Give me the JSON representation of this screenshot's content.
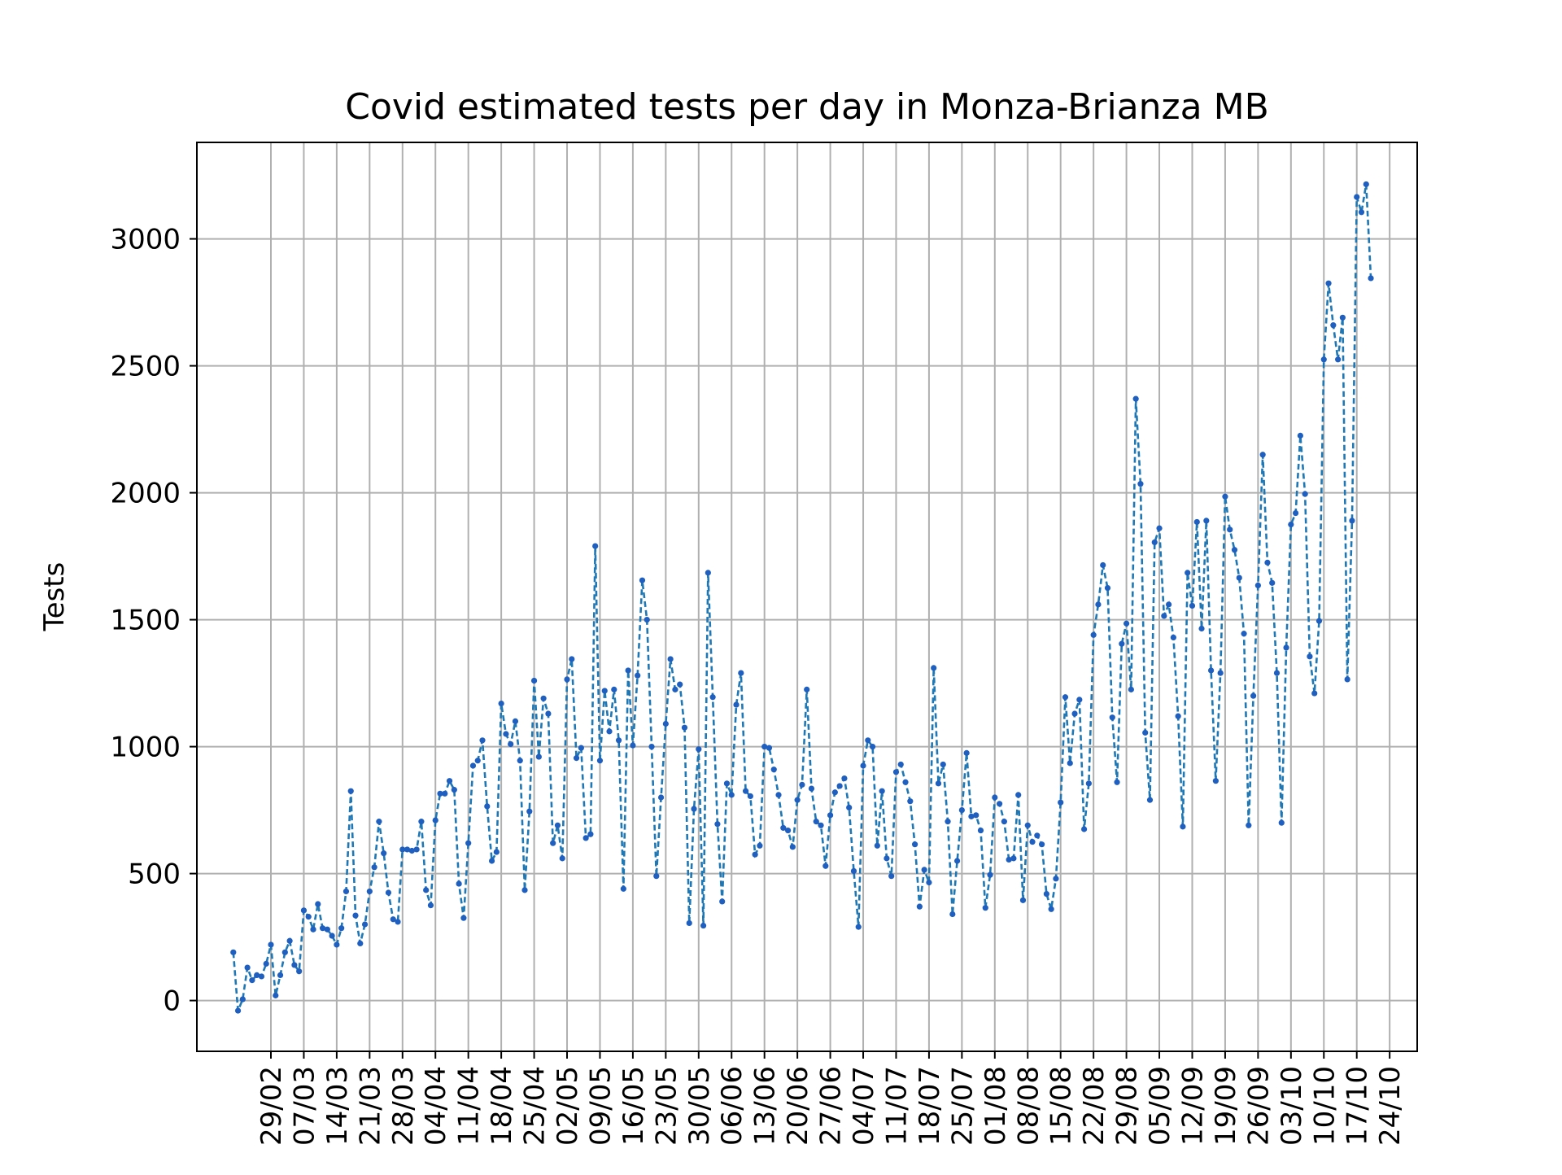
{
  "chart_data": {
    "type": "line",
    "title": "Covid estimated tests per day in Monza-Brianza MB",
    "xlabel": "",
    "ylabel": "Tests",
    "ylim": [
      -200,
      3380
    ],
    "yticks": [
      0,
      500,
      1000,
      1500,
      2000,
      2500,
      3000
    ],
    "xtick_labels": [
      "29/02",
      "07/03",
      "14/03",
      "21/03",
      "28/03",
      "04/04",
      "11/04",
      "18/04",
      "25/04",
      "02/05",
      "09/05",
      "16/05",
      "23/05",
      "30/05",
      "06/06",
      "13/06",
      "20/06",
      "27/06",
      "04/07",
      "11/07",
      "18/07",
      "25/07",
      "01/08",
      "08/08",
      "15/08",
      "22/08",
      "29/08",
      "05/09",
      "12/09",
      "19/09",
      "26/09",
      "03/10",
      "10/10",
      "17/10",
      "24/10"
    ],
    "first_date": "2020-02-21",
    "grid": true,
    "colors": {
      "line": "#1f77b4",
      "marker": "#1f5fbf"
    },
    "series": [
      {
        "values": [
          190,
          -40,
          5,
          130,
          80,
          100,
          95,
          145,
          220,
          20,
          100,
          190,
          235,
          140,
          115,
          355,
          330,
          280,
          380,
          285,
          280,
          255,
          220,
          285,
          430,
          825,
          335,
          225,
          300,
          430,
          525,
          705,
          580,
          425,
          320,
          310,
          595,
          595,
          590,
          595,
          705,
          435,
          375,
          710,
          815,
          815,
          865,
          830,
          460,
          325,
          620,
          925,
          945,
          1025,
          765,
          550,
          585,
          1170,
          1050,
          1010,
          1100,
          945,
          435,
          745,
          1260,
          960,
          1190,
          1130,
          620,
          690,
          560,
          1265,
          1345,
          955,
          995,
          640,
          655,
          1790,
          945,
          1220,
          1060,
          1225,
          1025,
          440,
          1300,
          1005,
          1280,
          1655,
          1500,
          1000,
          490,
          800,
          1090,
          1345,
          1225,
          1245,
          1075,
          305,
          755,
          990,
          295,
          1685,
          1195,
          695,
          390,
          855,
          810,
          1165,
          1290,
          825,
          805,
          575,
          610,
          1000,
          995,
          910,
          810,
          680,
          670,
          605,
          790,
          850,
          1225,
          835,
          705,
          690,
          530,
          730,
          820,
          845,
          875,
          760,
          510,
          290,
          925,
          1025,
          1000,
          610,
          825,
          560,
          490,
          900,
          930,
          860,
          785,
          615,
          370,
          515,
          465,
          1310,
          855,
          930,
          705,
          340,
          550,
          750,
          975,
          725,
          730,
          670,
          365,
          495,
          800,
          775,
          705,
          555,
          560,
          810,
          395,
          690,
          625,
          650,
          615,
          420,
          360,
          480,
          780,
          1195,
          935,
          1130,
          1185,
          675,
          855,
          1440,
          1560,
          1715,
          1625,
          1115,
          860,
          1405,
          1485,
          1225,
          2370,
          2035,
          1055,
          790,
          1805,
          1860,
          1515,
          1560,
          1430,
          1120,
          685,
          1685,
          1555,
          1885,
          1465,
          1890,
          1300,
          865,
          1290,
          1985,
          1855,
          1775,
          1665,
          1445,
          690,
          1200,
          1635,
          2150,
          1725,
          1645,
          1290,
          700,
          1390,
          1875,
          1920,
          2225,
          1995,
          1355,
          1210,
          1495,
          2525,
          2825,
          2660,
          2525,
          2690,
          1265,
          1890,
          3165,
          3105,
          3215,
          2845
        ]
      }
    ]
  }
}
